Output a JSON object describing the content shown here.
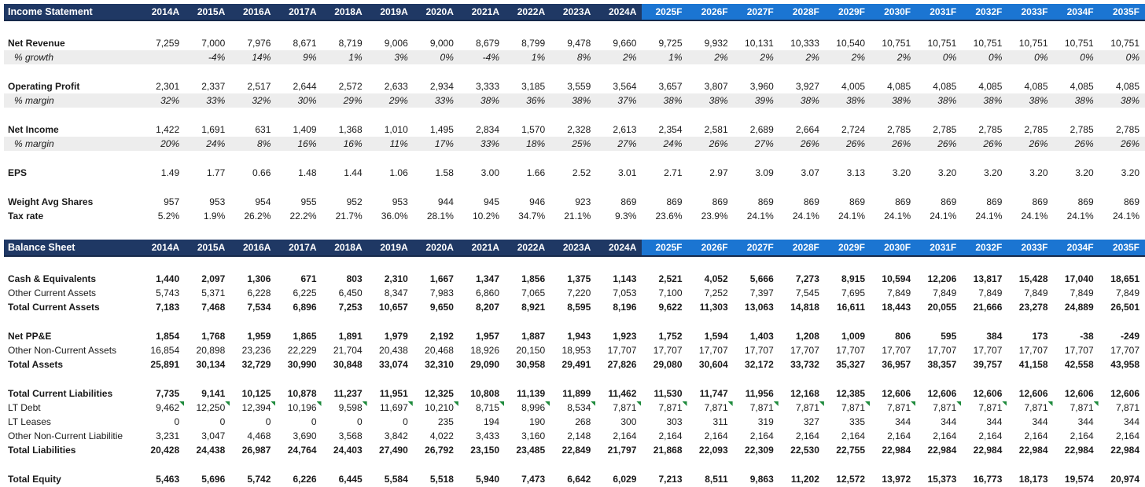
{
  "columns": {
    "actual": [
      "2014A",
      "2015A",
      "2016A",
      "2017A",
      "2018A",
      "2019A",
      "2020A",
      "2021A",
      "2022A",
      "2023A",
      "2024A"
    ],
    "forecast": [
      "2025F",
      "2026F",
      "2027F",
      "2028F",
      "2029F",
      "2030F",
      "2031F",
      "2032F",
      "2033F",
      "2034F",
      "2035F"
    ]
  },
  "colors": {
    "header_actual_bg": "#1F3864",
    "header_forecast_bg": "#1B75D2",
    "header_text": "#FFFFFF",
    "shaded_row_bg": "#EDEDED",
    "comment_flag_green": "#1E8A3C"
  },
  "income_statement": {
    "title": "Income Statement",
    "rows": [
      {
        "spacer": true
      },
      {
        "label": "Net Revenue",
        "label_bold": true,
        "values_bold": false,
        "pct": false,
        "values": [
          "7,259",
          "7,000",
          "7,976",
          "8,671",
          "8,719",
          "9,006",
          "9,000",
          "8,679",
          "8,799",
          "9,478",
          "9,660",
          "9,725",
          "9,932",
          "10,131",
          "10,333",
          "10,540",
          "10,751",
          "10,751",
          "10,751",
          "10,751",
          "10,751",
          "10,751"
        ]
      },
      {
        "label": "% growth",
        "label_bold": false,
        "values_bold": false,
        "pct": true,
        "values": [
          "",
          "-4%",
          "14%",
          "9%",
          "1%",
          "3%",
          "0%",
          "-4%",
          "1%",
          "8%",
          "2%",
          "1%",
          "2%",
          "2%",
          "2%",
          "2%",
          "2%",
          "0%",
          "0%",
          "0%",
          "0%",
          "0%"
        ]
      },
      {
        "spacer": true
      },
      {
        "label": "Operating Profit",
        "label_bold": true,
        "values_bold": false,
        "pct": false,
        "values": [
          "2,301",
          "2,337",
          "2,517",
          "2,644",
          "2,572",
          "2,633",
          "2,934",
          "3,333",
          "3,185",
          "3,559",
          "3,564",
          "3,657",
          "3,807",
          "3,960",
          "3,927",
          "4,005",
          "4,085",
          "4,085",
          "4,085",
          "4,085",
          "4,085",
          "4,085"
        ]
      },
      {
        "label": "% margin",
        "label_bold": false,
        "values_bold": false,
        "pct": true,
        "values": [
          "32%",
          "33%",
          "32%",
          "30%",
          "29%",
          "29%",
          "33%",
          "38%",
          "36%",
          "38%",
          "37%",
          "38%",
          "38%",
          "39%",
          "38%",
          "38%",
          "38%",
          "38%",
          "38%",
          "38%",
          "38%",
          "38%"
        ]
      },
      {
        "spacer": true
      },
      {
        "label": "Net Income",
        "label_bold": true,
        "values_bold": false,
        "pct": false,
        "values": [
          "1,422",
          "1,691",
          "631",
          "1,409",
          "1,368",
          "1,010",
          "1,495",
          "2,834",
          "1,570",
          "2,328",
          "2,613",
          "2,354",
          "2,581",
          "2,689",
          "2,664",
          "2,724",
          "2,785",
          "2,785",
          "2,785",
          "2,785",
          "2,785",
          "2,785"
        ]
      },
      {
        "label": "% margin",
        "label_bold": false,
        "values_bold": false,
        "pct": true,
        "values": [
          "20%",
          "24%",
          "8%",
          "16%",
          "16%",
          "11%",
          "17%",
          "33%",
          "18%",
          "25%",
          "27%",
          "24%",
          "26%",
          "27%",
          "26%",
          "26%",
          "26%",
          "26%",
          "26%",
          "26%",
          "26%",
          "26%"
        ]
      },
      {
        "spacer": true
      },
      {
        "label": "EPS",
        "label_bold": true,
        "values_bold": false,
        "pct": false,
        "values": [
          "1.49",
          "1.77",
          "0.66",
          "1.48",
          "1.44",
          "1.06",
          "1.58",
          "3.00",
          "1.66",
          "2.52",
          "3.01",
          "2.71",
          "2.97",
          "3.09",
          "3.07",
          "3.13",
          "3.20",
          "3.20",
          "3.20",
          "3.20",
          "3.20",
          "3.20"
        ]
      },
      {
        "spacer": true
      },
      {
        "label": "Weight Avg Shares",
        "label_bold": true,
        "values_bold": false,
        "pct": false,
        "values": [
          "957",
          "953",
          "954",
          "955",
          "952",
          "953",
          "944",
          "945",
          "946",
          "923",
          "869",
          "869",
          "869",
          "869",
          "869",
          "869",
          "869",
          "869",
          "869",
          "869",
          "869",
          "869"
        ]
      },
      {
        "label": "Tax rate",
        "label_bold": true,
        "values_bold": false,
        "pct": false,
        "values": [
          "5.2%",
          "1.9%",
          "26.2%",
          "22.2%",
          "21.7%",
          "36.0%",
          "28.1%",
          "10.2%",
          "34.7%",
          "21.1%",
          "9.3%",
          "23.6%",
          "23.9%",
          "24.1%",
          "24.1%",
          "24.1%",
          "24.1%",
          "24.1%",
          "24.1%",
          "24.1%",
          "24.1%",
          "24.1%"
        ]
      }
    ]
  },
  "balance_sheet": {
    "title": "Balance Sheet",
    "rows": [
      {
        "spacer": true
      },
      {
        "label": "Cash & Equivalents",
        "label_bold": true,
        "values_bold": true,
        "pct": false,
        "values": [
          "1,440",
          "2,097",
          "1,306",
          "671",
          "803",
          "2,310",
          "1,667",
          "1,347",
          "1,856",
          "1,375",
          "1,143",
          "2,521",
          "4,052",
          "5,666",
          "7,273",
          "8,915",
          "10,594",
          "12,206",
          "13,817",
          "15,428",
          "17,040",
          "18,651"
        ]
      },
      {
        "label": "Other Current Assets",
        "label_bold": false,
        "values_bold": false,
        "pct": false,
        "values": [
          "5,743",
          "5,371",
          "6,228",
          "6,225",
          "6,450",
          "8,347",
          "7,983",
          "6,860",
          "7,065",
          "7,220",
          "7,053",
          "7,100",
          "7,252",
          "7,397",
          "7,545",
          "7,695",
          "7,849",
          "7,849",
          "7,849",
          "7,849",
          "7,849",
          "7,849"
        ]
      },
      {
        "label": "Total Current Assets",
        "label_bold": true,
        "values_bold": true,
        "pct": false,
        "values": [
          "7,183",
          "7,468",
          "7,534",
          "6,896",
          "7,253",
          "10,657",
          "9,650",
          "8,207",
          "8,921",
          "8,595",
          "8,196",
          "9,622",
          "11,303",
          "13,063",
          "14,818",
          "16,611",
          "18,443",
          "20,055",
          "21,666",
          "23,278",
          "24,889",
          "26,501"
        ]
      },
      {
        "spacer": true
      },
      {
        "label": "Net PP&E",
        "label_bold": true,
        "values_bold": true,
        "pct": false,
        "values": [
          "1,854",
          "1,768",
          "1,959",
          "1,865",
          "1,891",
          "1,979",
          "2,192",
          "1,957",
          "1,887",
          "1,943",
          "1,923",
          "1,752",
          "1,594",
          "1,403",
          "1,208",
          "1,009",
          "806",
          "595",
          "384",
          "173",
          "-38",
          "-249"
        ]
      },
      {
        "label": "Other Non-Current Assets",
        "label_bold": false,
        "values_bold": false,
        "pct": false,
        "values": [
          "16,854",
          "20,898",
          "23,236",
          "22,229",
          "21,704",
          "20,438",
          "20,468",
          "18,926",
          "20,150",
          "18,953",
          "17,707",
          "17,707",
          "17,707",
          "17,707",
          "17,707",
          "17,707",
          "17,707",
          "17,707",
          "17,707",
          "17,707",
          "17,707",
          "17,707"
        ]
      },
      {
        "label": "Total Assets",
        "label_bold": true,
        "values_bold": true,
        "pct": false,
        "values": [
          "25,891",
          "30,134",
          "32,729",
          "30,990",
          "30,848",
          "33,074",
          "32,310",
          "29,090",
          "30,958",
          "29,491",
          "27,826",
          "29,080",
          "30,604",
          "32,172",
          "33,732",
          "35,327",
          "36,957",
          "38,357",
          "39,757",
          "41,158",
          "42,558",
          "43,958"
        ]
      },
      {
        "spacer": true
      },
      {
        "label": "Total Current Liabilities",
        "label_bold": true,
        "values_bold": true,
        "pct": false,
        "values": [
          "7,735",
          "9,141",
          "10,125",
          "10,878",
          "11,237",
          "11,951",
          "12,325",
          "10,808",
          "11,139",
          "11,899",
          "11,462",
          "11,530",
          "11,747",
          "11,956",
          "12,168",
          "12,385",
          "12,606",
          "12,606",
          "12,606",
          "12,606",
          "12,606",
          "12,606"
        ]
      },
      {
        "label": "LT Debt",
        "label_bold": false,
        "values_bold": false,
        "pct": false,
        "flags": true,
        "values": [
          "9,462",
          "12,250",
          "12,394",
          "10,196",
          "9,598",
          "11,697",
          "10,210",
          "8,715",
          "8,996",
          "8,534",
          "7,871",
          "7,871",
          "7,871",
          "7,871",
          "7,871",
          "7,871",
          "7,871",
          "7,871",
          "7,871",
          "7,871",
          "7,871",
          "7,871"
        ]
      },
      {
        "label": "LT Leases",
        "label_bold": false,
        "values_bold": false,
        "pct": false,
        "values": [
          "0",
          "0",
          "0",
          "0",
          "0",
          "0",
          "235",
          "194",
          "190",
          "268",
          "300",
          "303",
          "311",
          "319",
          "327",
          "335",
          "344",
          "344",
          "344",
          "344",
          "344",
          "344"
        ]
      },
      {
        "label": "Other Non-Current Liabilitie",
        "label_bold": false,
        "values_bold": false,
        "pct": false,
        "values": [
          "3,231",
          "3,047",
          "4,468",
          "3,690",
          "3,568",
          "3,842",
          "4,022",
          "3,433",
          "3,160",
          "2,148",
          "2,164",
          "2,164",
          "2,164",
          "2,164",
          "2,164",
          "2,164",
          "2,164",
          "2,164",
          "2,164",
          "2,164",
          "2,164",
          "2,164"
        ]
      },
      {
        "label": "Total Liabilities",
        "label_bold": true,
        "values_bold": true,
        "pct": false,
        "values": [
          "20,428",
          "24,438",
          "26,987",
          "24,764",
          "24,403",
          "27,490",
          "26,792",
          "23,150",
          "23,485",
          "22,849",
          "21,797",
          "21,868",
          "22,093",
          "22,309",
          "22,530",
          "22,755",
          "22,984",
          "22,984",
          "22,984",
          "22,984",
          "22,984",
          "22,984"
        ]
      },
      {
        "spacer": true
      },
      {
        "label": "Total Equity",
        "label_bold": true,
        "values_bold": true,
        "pct": false,
        "values": [
          "5,463",
          "5,696",
          "5,742",
          "6,226",
          "6,445",
          "5,584",
          "5,518",
          "5,940",
          "7,473",
          "6,642",
          "6,029",
          "7,213",
          "8,511",
          "9,863",
          "11,202",
          "12,572",
          "13,972",
          "15,373",
          "16,773",
          "18,173",
          "19,574",
          "20,974"
        ]
      }
    ]
  }
}
